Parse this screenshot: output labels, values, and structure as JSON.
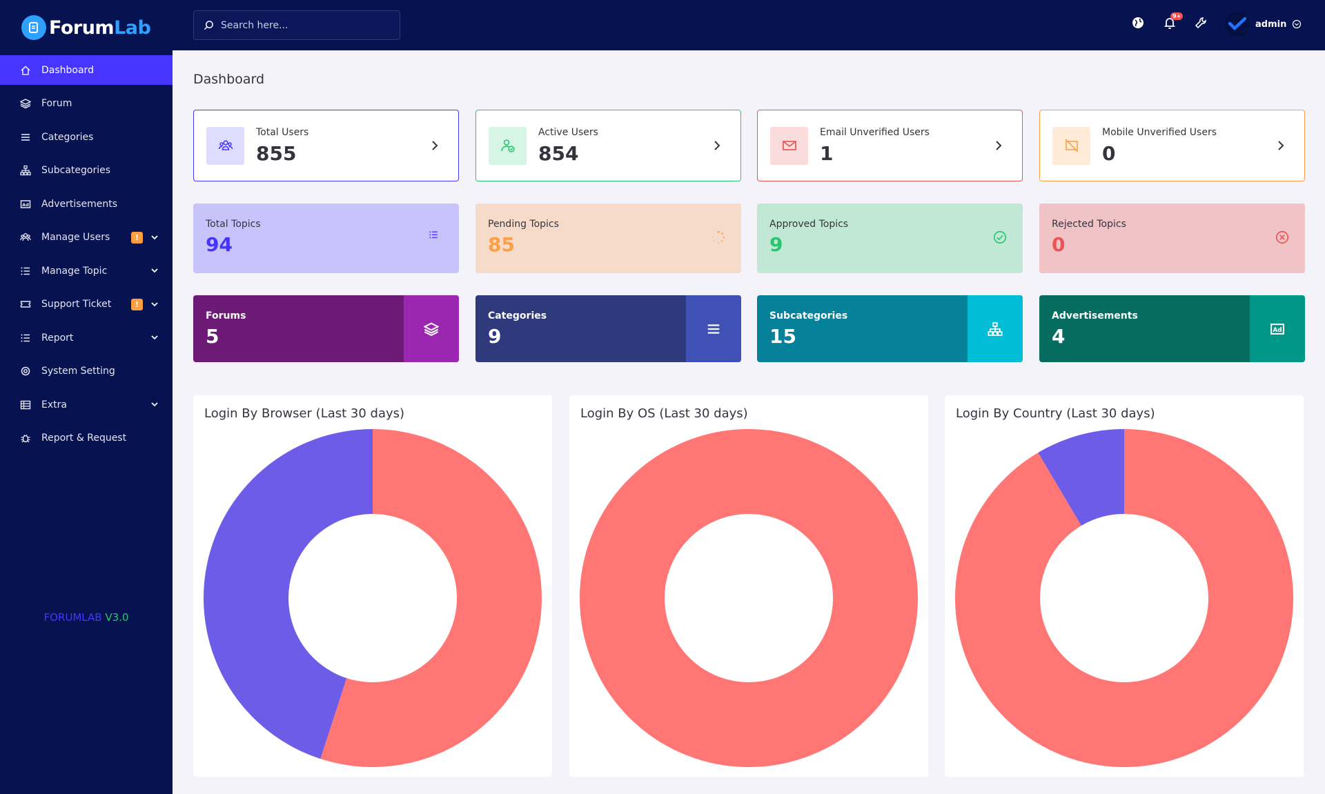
{
  "app": {
    "logo_main": "Forum",
    "logo_accent": "Lab"
  },
  "sidebar": {
    "items": [
      {
        "label": "Dashboard",
        "icon": "home-icon",
        "active": true
      },
      {
        "label": "Forum",
        "icon": "layers-icon"
      },
      {
        "label": "Categories",
        "icon": "menu-icon"
      },
      {
        "label": "Subcategories",
        "icon": "sitemap-icon"
      },
      {
        "label": "Advertisements",
        "icon": "ad-icon"
      },
      {
        "label": "Manage Users",
        "icon": "users-icon",
        "badge": "!",
        "expandable": true
      },
      {
        "label": "Manage Topic",
        "icon": "list-icon",
        "expandable": true
      },
      {
        "label": "Support Ticket",
        "icon": "ticket-icon",
        "badge": "!",
        "expandable": true
      },
      {
        "label": "Report",
        "icon": "list-icon",
        "expandable": true
      },
      {
        "label": "System Setting",
        "icon": "gear-icon"
      },
      {
        "label": "Extra",
        "icon": "server-icon",
        "expandable": true
      },
      {
        "label": "Report & Request",
        "icon": "bug-icon"
      }
    ],
    "version_name": "FORUMLAB",
    "version_number": "V3.0"
  },
  "topbar": {
    "search_placeholder": "Search here...",
    "notification_badge": "9+",
    "username": "admin"
  },
  "page": {
    "title": "Dashboard"
  },
  "user_widgets": [
    {
      "label": "Total Users",
      "value": "855",
      "color": "#4634ff",
      "bg": "#dedcff",
      "icon": "users-group-icon"
    },
    {
      "label": "Active Users",
      "value": "854",
      "color": "#28c76f",
      "bg": "#d7f5e4",
      "icon": "user-check-icon"
    },
    {
      "label": "Email Unverified Users",
      "value": "1",
      "color": "#ea5455",
      "bg": "#fbdcdc",
      "icon": "envelope-icon"
    },
    {
      "label": "Mobile Unverified Users",
      "value": "0",
      "color": "#ff9f43",
      "bg": "#ffebd8",
      "icon": "mobile-slash-icon"
    }
  ],
  "topic_widgets": [
    {
      "label": "Total Topics",
      "value": "94",
      "color": "#4634ff",
      "bg": "#c8c4fb",
      "icon": "list-icon"
    },
    {
      "label": "Pending Topics",
      "value": "85",
      "color": "#ff9f43",
      "bg": "#f6dbca",
      "icon": "spinner-icon"
    },
    {
      "label": "Approved Topics",
      "value": "9",
      "color": "#28c76f",
      "bg": "#c1e8d5",
      "icon": "check-circle-icon"
    },
    {
      "label": "Rejected Topics",
      "value": "0",
      "color": "#ea5455",
      "bg": "#f0c3c7",
      "icon": "x-circle-icon"
    }
  ],
  "content_widgets": [
    {
      "label": "Forums",
      "value": "5",
      "bg": "#6c1a76",
      "side": "#9b27b0",
      "icon": "layers-icon"
    },
    {
      "label": "Categories",
      "value": "9",
      "bg": "#2e3a7c",
      "side": "#3f51b5",
      "icon": "menu-icon"
    },
    {
      "label": "Subcategories",
      "value": "15",
      "bg": "#05819a",
      "side": "#00bcd4",
      "icon": "sitemap-icon"
    },
    {
      "label": "Advertisements",
      "value": "4",
      "bg": "#046d60",
      "side": "#009688",
      "icon": "ad-icon"
    }
  ],
  "chart_data": [
    {
      "type": "pie",
      "title": "Login By Browser (Last 30 days)",
      "slices": [
        {
          "value": 55,
          "color": "#ff7674"
        },
        {
          "value": 45,
          "color": "#6c5ce7"
        }
      ]
    },
    {
      "type": "pie",
      "title": "Login By OS (Last 30 days)",
      "slices": [
        {
          "value": 100,
          "color": "#ff7674"
        }
      ]
    },
    {
      "type": "pie",
      "title": "Login By Country (Last 30 days)",
      "slices": [
        {
          "value": 91.5,
          "color": "#ff7674"
        },
        {
          "value": 8.5,
          "color": "#6c5ce7"
        }
      ]
    }
  ]
}
